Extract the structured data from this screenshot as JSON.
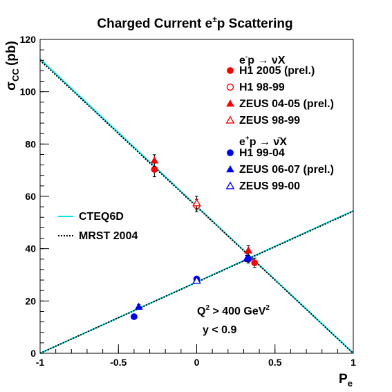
{
  "chart_data": {
    "type": "scatter",
    "title_pre": "Charged Current e",
    "title_sup": "±",
    "title_post": "p Scattering",
    "xlabel": "P",
    "xlabel_sub": "e",
    "ylabel": "σ",
    "ylabel_sub": "CC",
    "ylabel_unit": "(pb)",
    "xlim": [
      -1,
      1
    ],
    "ylim": [
      0,
      120
    ],
    "xticks": [
      -1,
      -0.5,
      0,
      0.5,
      1
    ],
    "xtick_labels": [
      "-1",
      "-0.5",
      "0",
      "0.5",
      "1"
    ],
    "yticks": [
      0,
      20,
      40,
      60,
      80,
      100,
      120
    ],
    "ytick_labels": [
      "0",
      "20",
      "40",
      "60",
      "80",
      "100",
      "120"
    ],
    "grid": false,
    "legend_position": "top-right",
    "colors": {
      "electron": "#ff0000",
      "positron": "#0000ff",
      "cteq": "#00e5e5",
      "mrst": "#000000"
    },
    "legend_groups": [
      {
        "pre": "e",
        "sup": "-",
        "post": "p → νX"
      },
      {
        "pre": "e",
        "sup": "+",
        "post": "p → ν̄X"
      }
    ],
    "series": [
      {
        "name": "H1 2005 (prel.)",
        "marker": "circle",
        "filled": true,
        "color": "#ff0000",
        "points": [
          {
            "x": -0.27,
            "y": 70.3,
            "err": 2.8
          },
          {
            "x": 0.37,
            "y": 34.6,
            "err": 1.8
          }
        ]
      },
      {
        "name": "H1 98-99",
        "marker": "circle",
        "filled": false,
        "color": "#ff0000",
        "points": [
          {
            "x": 0.0,
            "y": 56.5,
            "err": 2.4
          }
        ]
      },
      {
        "name": "ZEUS 04-05 (prel.)",
        "marker": "triangle",
        "filled": true,
        "color": "#ff0000",
        "points": [
          {
            "x": -0.27,
            "y": 73.7,
            "err": 2.2
          },
          {
            "x": 0.33,
            "y": 39.3,
            "err": 1.8
          }
        ]
      },
      {
        "name": "ZEUS 98-99",
        "marker": "triangle",
        "filled": false,
        "color": "#ff0000",
        "points": [
          {
            "x": 0.0,
            "y": 57.4,
            "err": 2.6
          }
        ]
      },
      {
        "name": "H1 99-04",
        "marker": "circle",
        "filled": true,
        "color": "#0000ff",
        "points": [
          {
            "x": -0.4,
            "y": 14.0,
            "err": 0.8
          },
          {
            "x": 0.0,
            "y": 28.4,
            "err": 1.0
          },
          {
            "x": 0.33,
            "y": 36.0,
            "err": 1.5
          }
        ]
      },
      {
        "name": "ZEUS 06-07 (prel.)",
        "marker": "triangle",
        "filled": true,
        "color": "#0000ff",
        "points": [
          {
            "x": -0.37,
            "y": 17.8,
            "err": 0.8
          },
          {
            "x": 0.32,
            "y": 36.2,
            "err": 1.2
          }
        ]
      },
      {
        "name": "ZEUS 99-00",
        "marker": "triangle",
        "filled": false,
        "color": "#0000ff",
        "points": [
          {
            "x": 0.0,
            "y": 27.8,
            "err": 1.0
          }
        ]
      }
    ],
    "curves": [
      {
        "name": "CTEQ6D",
        "style": "solid",
        "color": "#00e5e5",
        "lines": [
          {
            "x": [
              -1,
              1
            ],
            "y": [
              112.5,
              0
            ]
          },
          {
            "x": [
              -1,
              1
            ],
            "y": [
              0,
              54.5
            ]
          }
        ]
      },
      {
        "name": "MRST 2004",
        "style": "dotted",
        "color": "#000000",
        "lines": [
          {
            "x": [
              -1,
              1
            ],
            "y": [
              112.0,
              0
            ]
          },
          {
            "x": [
              -1,
              1
            ],
            "y": [
              0,
              54.3
            ]
          }
        ]
      }
    ],
    "annotations": [
      {
        "pre": "Q",
        "sup1": "2",
        "mid": " > 400 GeV",
        "sup2": "2"
      },
      {
        "text": "y < 0.9"
      }
    ]
  }
}
